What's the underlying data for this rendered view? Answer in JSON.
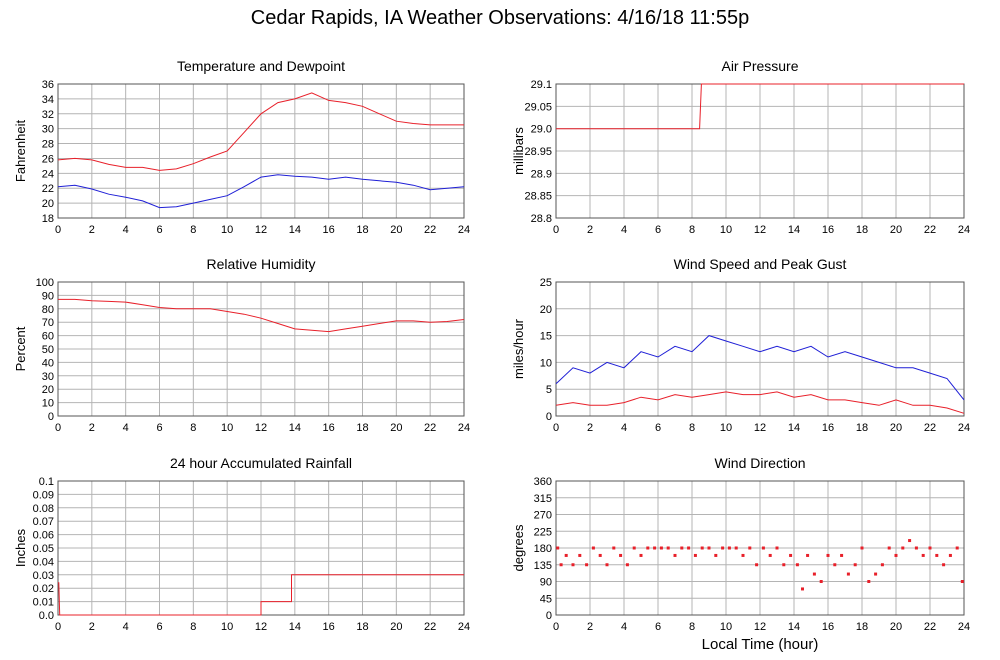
{
  "page_title": "Cedar Rapids, IA Weather Observations: 4/16/18 11:55p",
  "x_axis_title": "Local Time (hour)",
  "colors": {
    "red": "#e8202a",
    "blue": "#1f1fd6",
    "grid": "#b4b4b4"
  },
  "chart_data": [
    {
      "id": "temp",
      "type": "line",
      "title": "Temperature and Dewpoint",
      "ylabel": "Fahrenheit",
      "xlim": [
        0,
        24
      ],
      "ylim": [
        18,
        36
      ],
      "yticks": [
        "18",
        "20",
        "22",
        "24",
        "26",
        "28",
        "30",
        "32",
        "34",
        "36"
      ],
      "xticks": [
        "0",
        "2",
        "4",
        "6",
        "8",
        "10",
        "12",
        "14",
        "16",
        "18",
        "20",
        "22",
        "24"
      ],
      "series": [
        {
          "color": "red",
          "x": [
            0,
            1,
            2,
            3,
            4,
            5,
            6,
            7,
            8,
            9,
            10,
            11,
            12,
            13,
            14,
            15,
            16,
            17,
            18,
            19,
            20,
            21,
            22,
            23,
            24
          ],
          "values": [
            25.8,
            26,
            25.8,
            25.2,
            24.8,
            24.8,
            24.4,
            24.6,
            25.3,
            26.2,
            27,
            29.5,
            32,
            33.5,
            34,
            34.8,
            33.8,
            33.5,
            33,
            32,
            31,
            30.7,
            30.5,
            30.5,
            30.5
          ]
        },
        {
          "color": "blue",
          "x": [
            0,
            1,
            2,
            3,
            4,
            5,
            6,
            7,
            8,
            9,
            10,
            11,
            12,
            13,
            14,
            15,
            16,
            17,
            18,
            19,
            20,
            21,
            22,
            23,
            24
          ],
          "values": [
            22.2,
            22.4,
            21.9,
            21.2,
            20.8,
            20.3,
            19.4,
            19.5,
            20,
            20.5,
            21,
            22.2,
            23.5,
            23.8,
            23.6,
            23.5,
            23.2,
            23.5,
            23.2,
            23,
            22.8,
            22.4,
            21.8,
            22,
            22.2
          ]
        }
      ]
    },
    {
      "id": "pres",
      "type": "line",
      "title": "Air Pressure",
      "ylabel": "millibars",
      "xlim": [
        0,
        24
      ],
      "ylim": [
        28.8,
        29.1
      ],
      "yticks": [
        "28.8",
        "28.85",
        "28.9",
        "28.95",
        "29.0",
        "29.05",
        "29.1"
      ],
      "xticks": [
        "0",
        "2",
        "4",
        "6",
        "8",
        "10",
        "12",
        "14",
        "16",
        "18",
        "20",
        "22",
        "24"
      ],
      "series": [
        {
          "color": "red",
          "x": [
            0,
            8.45,
            8.45,
            8.55,
            24
          ],
          "values": [
            29.0,
            29.0,
            29.0,
            29.1,
            29.1
          ]
        }
      ]
    },
    {
      "id": "rh",
      "type": "line",
      "title": "Relative Humidity",
      "ylabel": "Percent",
      "xlim": [
        0,
        24
      ],
      "ylim": [
        0,
        100
      ],
      "yticks": [
        "0",
        "10",
        "20",
        "30",
        "40",
        "50",
        "60",
        "70",
        "80",
        "90",
        "100"
      ],
      "xticks": [
        "0",
        "2",
        "4",
        "6",
        "8",
        "10",
        "12",
        "14",
        "16",
        "18",
        "20",
        "22",
        "24"
      ],
      "series": [
        {
          "color": "red",
          "x": [
            0,
            1,
            2,
            3,
            4,
            5,
            6,
            7,
            8,
            9,
            10,
            11,
            12,
            13,
            14,
            15,
            16,
            17,
            18,
            19,
            20,
            21,
            22,
            23,
            24
          ],
          "values": [
            87,
            87,
            86,
            85.5,
            85,
            83,
            81,
            80,
            80,
            80,
            78,
            76,
            73,
            69,
            65,
            64,
            63,
            65,
            67,
            69,
            71,
            71,
            70,
            70.5,
            72
          ]
        }
      ]
    },
    {
      "id": "wind",
      "type": "line",
      "title": "Wind Speed and Peak Gust",
      "ylabel": "miles/hour",
      "xlim": [
        0,
        24
      ],
      "ylim": [
        0,
        25
      ],
      "yticks": [
        "0",
        "5",
        "10",
        "15",
        "20",
        "25"
      ],
      "xticks": [
        "0",
        "2",
        "4",
        "6",
        "8",
        "10",
        "12",
        "14",
        "16",
        "18",
        "20",
        "22",
        "24"
      ],
      "series": [
        {
          "color": "blue",
          "x": [
            0,
            1,
            2,
            3,
            4,
            5,
            6,
            7,
            8,
            9,
            10,
            11,
            12,
            13,
            14,
            15,
            16,
            17,
            18,
            19,
            20,
            21,
            22,
            23,
            24
          ],
          "values": [
            6,
            9,
            8,
            10,
            9,
            12,
            11,
            13,
            12,
            15,
            14,
            13,
            12,
            13,
            12,
            13,
            11,
            12,
            11,
            10,
            9,
            9,
            8,
            7,
            3
          ]
        },
        {
          "color": "red",
          "x": [
            0,
            1,
            2,
            3,
            4,
            5,
            6,
            7,
            8,
            9,
            10,
            11,
            12,
            13,
            14,
            15,
            16,
            17,
            18,
            19,
            20,
            21,
            22,
            23,
            24
          ],
          "values": [
            2,
            2.5,
            2,
            2,
            2.5,
            3.5,
            3,
            4,
            3.5,
            4,
            4.5,
            4,
            4,
            4.5,
            3.5,
            4,
            3,
            3,
            2.5,
            2,
            3,
            2,
            2,
            1.5,
            0.5
          ]
        }
      ]
    },
    {
      "id": "rain",
      "type": "line",
      "title": "24 hour Accumulated Rainfall",
      "ylabel": "Inches",
      "xlim": [
        0,
        24
      ],
      "ylim": [
        0,
        0.1
      ],
      "yticks": [
        "0.0",
        "0.01",
        "0.02",
        "0.03",
        "0.04",
        "0.05",
        "0.06",
        "0.07",
        "0.08",
        "0.09",
        "0.1"
      ],
      "xticks": [
        "0",
        "2",
        "4",
        "6",
        "8",
        "10",
        "12",
        "14",
        "16",
        "18",
        "20",
        "22",
        "24"
      ],
      "series": [
        {
          "color": "red",
          "x": [
            0,
            0.05,
            0.1,
            12,
            12,
            13.8,
            13.8,
            24
          ],
          "values": [
            0.024,
            0.024,
            0,
            0,
            0.01,
            0.01,
            0.03,
            0.03
          ]
        }
      ]
    },
    {
      "id": "dir",
      "type": "scatter",
      "title": "Wind Direction",
      "ylabel": "degrees",
      "xlim": [
        0,
        24
      ],
      "ylim": [
        0,
        360
      ],
      "yticks": [
        "0",
        "45",
        "90",
        "135",
        "180",
        "225",
        "270",
        "315",
        "360"
      ],
      "xticks": [
        "0",
        "2",
        "4",
        "6",
        "8",
        "10",
        "12",
        "14",
        "16",
        "18",
        "20",
        "22",
        "24"
      ],
      "series": [
        {
          "color": "red",
          "x": [
            0.1,
            0.3,
            0.6,
            1,
            1.4,
            1.8,
            2.2,
            2.6,
            3,
            3.4,
            3.8,
            4.2,
            4.6,
            5,
            5.4,
            5.8,
            6.2,
            6.6,
            7,
            7.4,
            7.8,
            8.2,
            8.6,
            9,
            9.4,
            9.8,
            10.2,
            10.6,
            11,
            11.4,
            11.8,
            12.2,
            12.6,
            13,
            13.4,
            13.8,
            14.2,
            14.5,
            14.8,
            15.2,
            15.6,
            16,
            16.4,
            16.8,
            17.2,
            17.6,
            18,
            18.4,
            18.8,
            19.2,
            19.6,
            20,
            20.4,
            20.8,
            21.2,
            21.6,
            22,
            22.4,
            22.8,
            23.2,
            23.6,
            23.9
          ],
          "values": [
            180,
            135,
            160,
            135,
            160,
            135,
            180,
            160,
            135,
            180,
            160,
            135,
            180,
            160,
            180,
            180,
            180,
            180,
            160,
            180,
            180,
            160,
            180,
            180,
            160,
            180,
            180,
            180,
            160,
            180,
            135,
            180,
            160,
            180,
            135,
            160,
            135,
            70,
            160,
            110,
            90,
            160,
            135,
            160,
            110,
            135,
            180,
            90,
            110,
            135,
            180,
            160,
            180,
            200,
            180,
            160,
            180,
            160,
            135,
            160,
            180,
            90
          ]
        }
      ]
    }
  ]
}
